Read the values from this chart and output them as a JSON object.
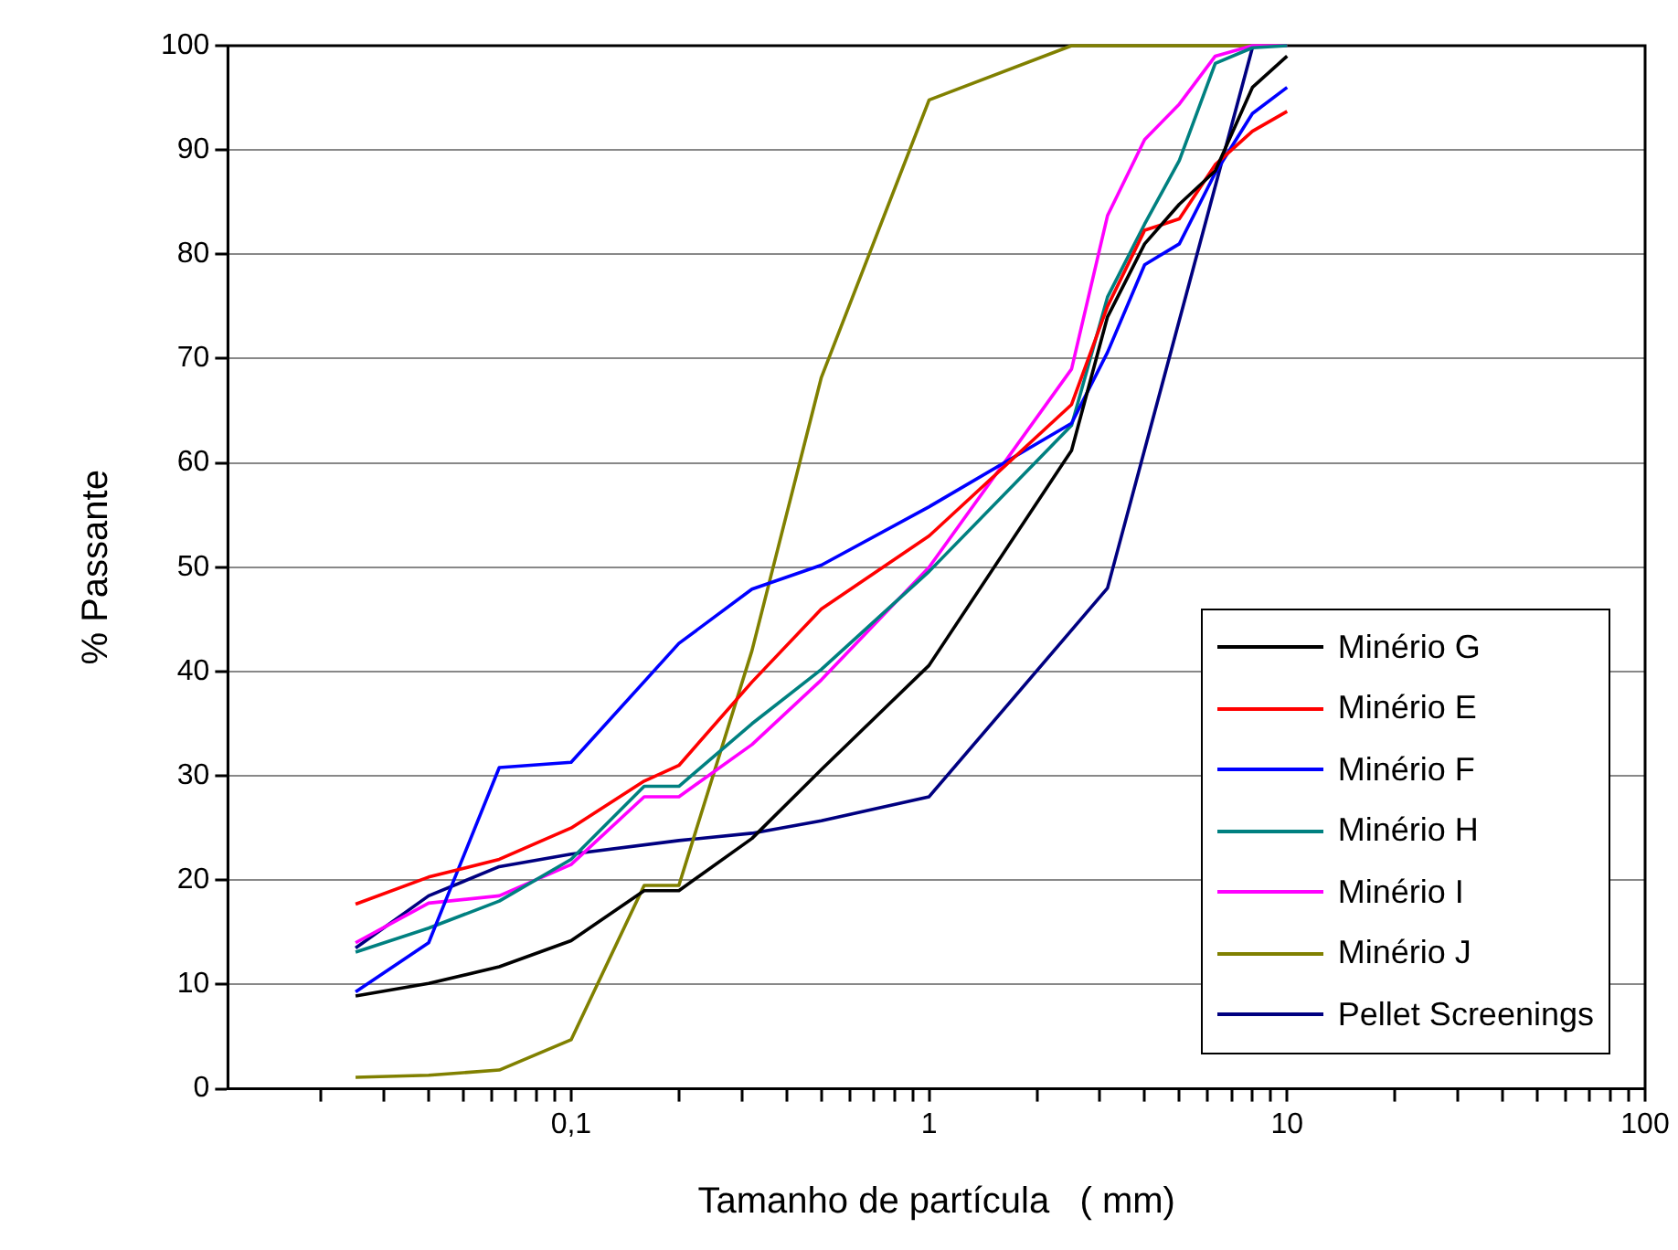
{
  "chart_data": {
    "type": "line",
    "xlabel": "Tamanho de partícula   ( mm)",
    "ylabel": "% Passante",
    "x": [
      0.025,
      0.04,
      0.063,
      0.1,
      0.16,
      0.2,
      0.32,
      0.5,
      1,
      2.5,
      3.15,
      4,
      5,
      6.3,
      8,
      10
    ],
    "series": [
      {
        "name": "Minério G",
        "color": "#000000",
        "values": [
          8.9,
          10.1,
          11.7,
          14.2,
          19,
          19,
          24,
          30.6,
          40.6,
          61.2,
          74,
          81,
          84.8,
          88,
          96,
          99
        ]
      },
      {
        "name": "Minério E",
        "color": "#ff0000",
        "values": [
          17.7,
          20.3,
          22,
          25,
          29.5,
          31,
          39,
          46,
          53,
          65.6,
          75,
          82.3,
          83.4,
          88.6,
          91.8,
          93.7
        ]
      },
      {
        "name": "Minério F",
        "color": "#0000ff",
        "values": [
          9.3,
          14,
          30.8,
          31.3,
          null,
          42.7,
          47.9,
          50.2,
          55.8,
          63.8,
          70.6,
          79,
          81,
          87.8,
          93.5,
          96
        ]
      },
      {
        "name": "Minério H",
        "color": "#008080",
        "values": [
          13.1,
          15.4,
          18,
          22,
          29,
          29,
          35,
          40.2,
          49.6,
          63.6,
          75.9,
          82.9,
          89,
          98.3,
          99.8,
          100
        ]
      },
      {
        "name": "Minério I",
        "color": "#ff00ff",
        "values": [
          14,
          17.8,
          18.5,
          21.5,
          28,
          28,
          33,
          39.2,
          50,
          69,
          83.7,
          91,
          94.4,
          99,
          100,
          100
        ]
      },
      {
        "name": "Minério J",
        "color": "#808000",
        "values": [
          1.1,
          1.3,
          1.8,
          4.7,
          19.5,
          19.5,
          42,
          68.2,
          94.8,
          100,
          100,
          100,
          100,
          100,
          100,
          100
        ]
      },
      {
        "name": "Pellet Screenings",
        "color": "#000080",
        "x": [
          0.025,
          0.04,
          0.063,
          0.1,
          0.2,
          0.32,
          0.5,
          1,
          3.15,
          8
        ],
        "values": [
          13.5,
          18.5,
          21.3,
          22.5,
          23.8,
          24.5,
          25.7,
          28,
          48,
          99.8
        ]
      }
    ],
    "log": "x",
    "xlim": [
      0.011,
      100
    ],
    "xticks": [
      {
        "value": 0.02,
        "label": null
      },
      {
        "value": 0.03,
        "label": null
      },
      {
        "value": 0.04,
        "label": null
      },
      {
        "value": 0.05,
        "label": null
      },
      {
        "value": 0.06,
        "label": null
      },
      {
        "value": 0.07,
        "label": null
      },
      {
        "value": 0.08,
        "label": null
      },
      {
        "value": 0.09,
        "label": null
      },
      {
        "value": 0.1,
        "label": "0,1"
      },
      {
        "value": 0.2,
        "label": null
      },
      {
        "value": 0.3,
        "label": null
      },
      {
        "value": 0.4,
        "label": null
      },
      {
        "value": 0.5,
        "label": null
      },
      {
        "value": 0.6,
        "label": null
      },
      {
        "value": 0.7,
        "label": null
      },
      {
        "value": 0.8,
        "label": null
      },
      {
        "value": 0.9,
        "label": null
      },
      1,
      {
        "value": 2,
        "label": null
      },
      {
        "value": 3,
        "label": null
      },
      {
        "value": 4,
        "label": null
      },
      {
        "value": 5,
        "label": null
      },
      {
        "value": 6,
        "label": null
      },
      {
        "value": 7,
        "label": null
      },
      {
        "value": 8,
        "label": null
      },
      {
        "value": 9,
        "label": null
      },
      10,
      {
        "value": 20,
        "label": null
      },
      {
        "value": 30,
        "label": null
      },
      {
        "value": 40,
        "label": null
      },
      {
        "value": 50,
        "label": null
      },
      {
        "value": 60,
        "label": null
      },
      {
        "value": 70,
        "label": null
      },
      {
        "value": 80,
        "label": null
      },
      {
        "value": 90,
        "label": null
      },
      100
    ],
    "ylim": [
      0,
      100
    ],
    "yticks": [
      0,
      10,
      20,
      30,
      40,
      50,
      60,
      70,
      80,
      90,
      100
    ],
    "grid": "y",
    "legend": "bottom right",
    "marker": "none",
    "line_style": "solid"
  }
}
